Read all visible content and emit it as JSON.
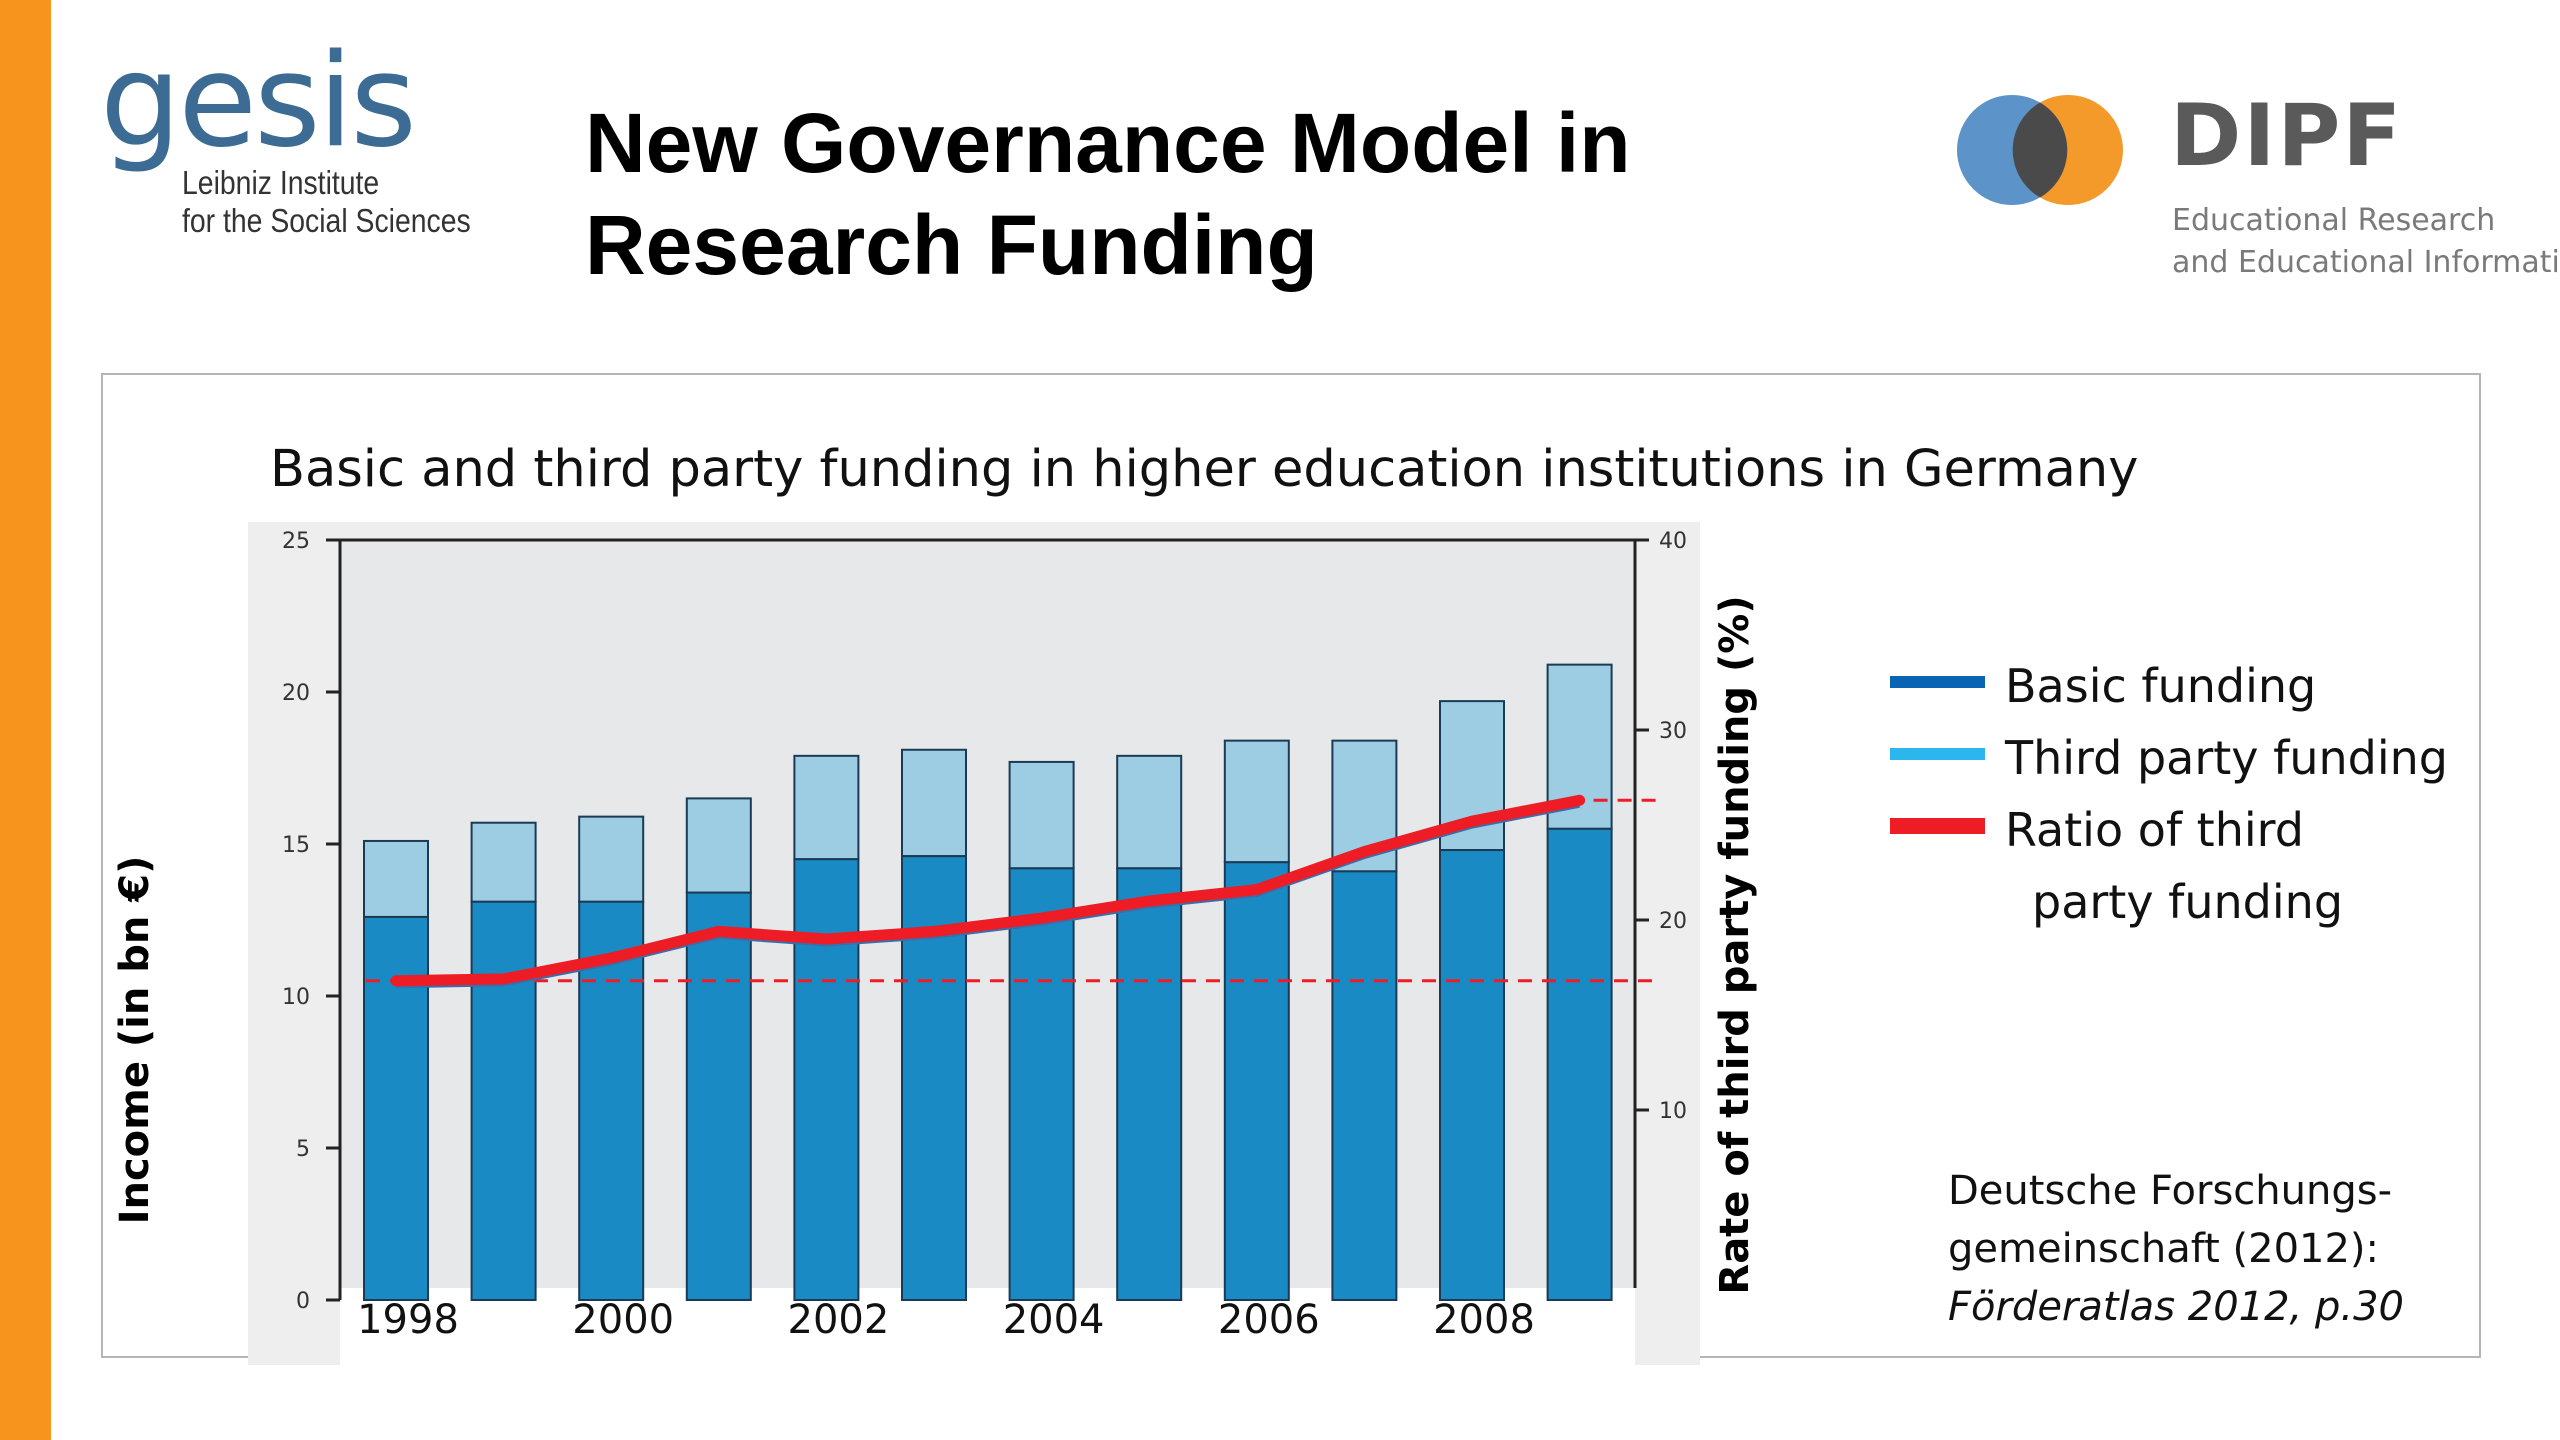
{
  "slide": {
    "title_line1": "New Governance Model in",
    "title_line2": "Research Funding"
  },
  "logos": {
    "gesis": {
      "word": "gesis",
      "line1": "Leibniz Institute",
      "line2": "for the Social Sciences"
    },
    "dipf": {
      "name": "DIPF",
      "line1": "Educational Research",
      "line2": "and Educational Information"
    }
  },
  "colors": {
    "accent_bar": "#f7941d",
    "basic_funding": "#1a8ac4",
    "third_party_funding": "#9ccde2",
    "ratio_line": "#ee1c25",
    "legend_basic": "#0a64b4",
    "legend_third": "#2bb6ee"
  },
  "chart_data": {
    "type": "bar",
    "title": "Basic and third party funding in higher education institutions in Germany",
    "ylabel": "Income (in bn €)",
    "y2label": "Rate of third party funding (%)",
    "ylim": [
      0,
      25
    ],
    "y2lim": [
      0,
      40
    ],
    "yticks": [
      0,
      5,
      10,
      15,
      20,
      25
    ],
    "y2ticks": [
      10,
      20,
      30,
      40
    ],
    "x": [
      1998,
      1999,
      2000,
      2001,
      2002,
      2003,
      2004,
      2005,
      2006,
      2007,
      2008,
      2009
    ],
    "xtick_labels": [
      "1998",
      "2000",
      "2002",
      "2004",
      "2006",
      "2008"
    ],
    "stacked": true,
    "series": [
      {
        "name": "Basic funding",
        "type": "bar",
        "values": [
          12.6,
          13.1,
          13.1,
          13.4,
          14.5,
          14.6,
          14.2,
          14.2,
          14.4,
          14.1,
          14.8,
          15.5
        ]
      },
      {
        "name": "Third party funding",
        "type": "bar",
        "values": [
          2.5,
          2.6,
          2.8,
          3.1,
          3.4,
          3.5,
          3.5,
          3.7,
          4.0,
          4.3,
          4.9,
          5.4
        ]
      },
      {
        "name": "Ratio of third party funding",
        "type": "line",
        "axis": "y2",
        "values": [
          16.8,
          16.9,
          18.0,
          19.4,
          19.0,
          19.4,
          20.1,
          21.0,
          21.6,
          23.6,
          25.2,
          26.3
        ]
      }
    ],
    "reference_lines_y2": [
      16.8,
      26.3
    ],
    "legend": [
      "Basic funding",
      "Third party funding",
      "Ratio of third",
      "party funding"
    ],
    "legend_position": "right",
    "grid": false
  },
  "source": {
    "line1": "Deutsche Forschungs-",
    "line2": "gemeinschaft (2012):",
    "line3": "Förderatlas 2012, p.30"
  }
}
